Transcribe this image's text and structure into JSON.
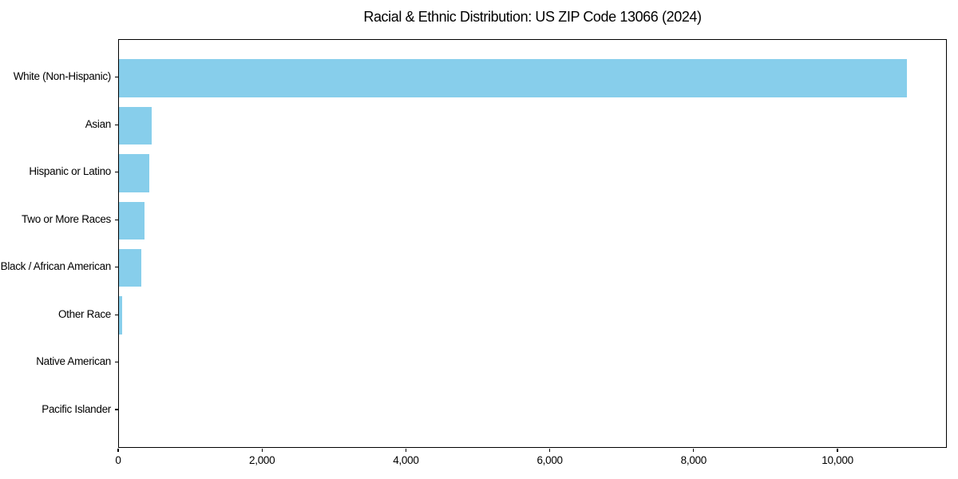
{
  "chart_data": {
    "type": "bar",
    "orientation": "horizontal",
    "title": "Racial & Ethnic Distribution: US ZIP Code 13066 (2024)",
    "categories": [
      "White (Non-Hispanic)",
      "Asian",
      "Hispanic or Latino",
      "Two or More Races",
      "Black / African American",
      "Other Race",
      "Native American",
      "Pacific Islander"
    ],
    "values": [
      10950,
      450,
      420,
      360,
      315,
      40,
      0,
      0
    ],
    "xlabel": "",
    "ylabel": "",
    "x_ticks": [
      0,
      2000,
      4000,
      6000,
      8000,
      10000
    ],
    "x_tick_labels": [
      "0",
      "2,000",
      "4,000",
      "6,000",
      "8,000",
      "10,000"
    ],
    "xlim": [
      0,
      11520
    ],
    "grid": false,
    "legend": null,
    "bar_color": "#87CEEB",
    "axis_color": "#000000",
    "background_color": "#FFFFFF"
  }
}
